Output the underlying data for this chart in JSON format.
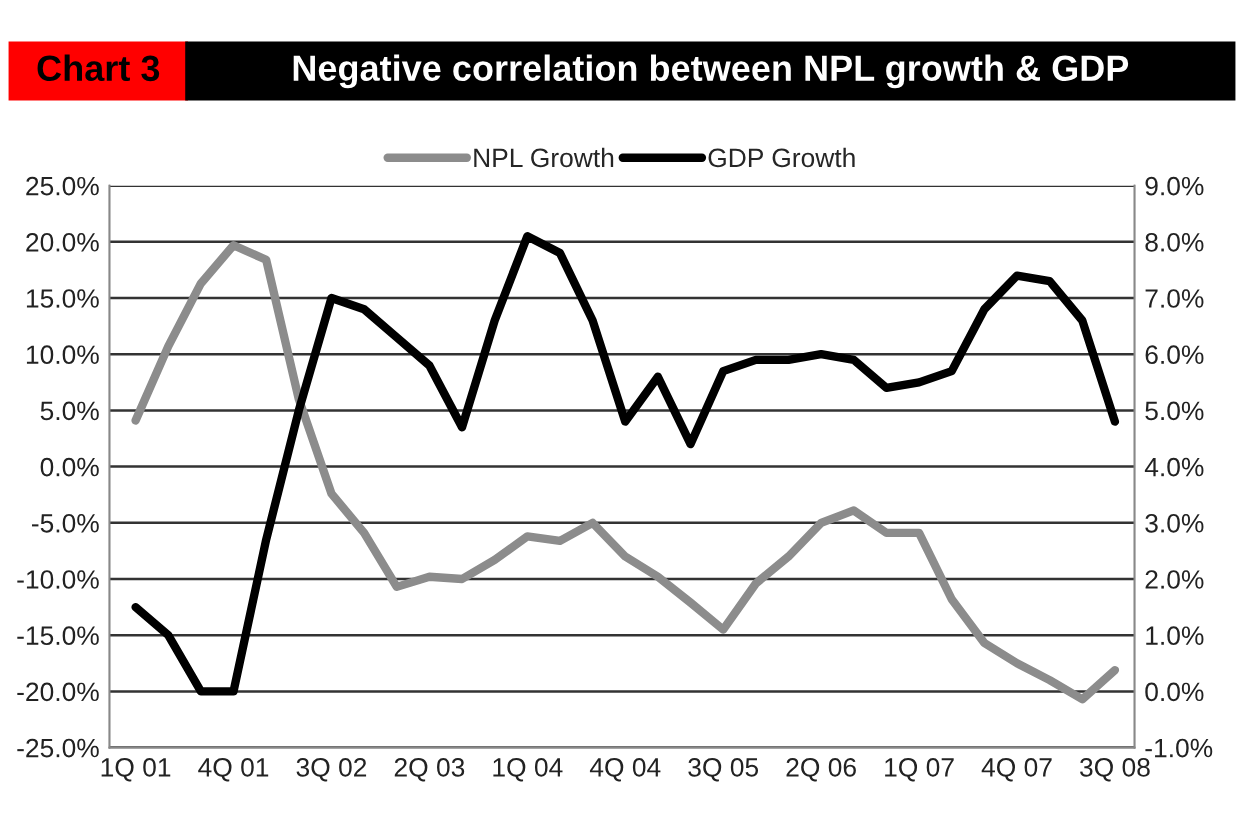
{
  "chart_data": {
    "type": "line",
    "title": "Negative correlation between NPL growth & GDP",
    "annotations": [
      "Chart 3"
    ],
    "categories": [
      "1Q 01",
      null,
      null,
      "4Q 01",
      null,
      null,
      "3Q 02",
      null,
      null,
      "2Q 03",
      null,
      null,
      "1Q 04",
      null,
      null,
      "4Q 04",
      null,
      null,
      "3Q 05",
      null,
      null,
      "2Q 06",
      null,
      null,
      "1Q 07",
      null,
      null,
      "4Q 07",
      null,
      null,
      "3Q 08"
    ],
    "series": [
      {
        "name": "NPL Growth",
        "color": "#8c8c8c",
        "values": [
          4.1,
          10.7,
          16.3,
          19.7,
          18.4,
          6.0,
          -2.4,
          -5.9,
          -10.7,
          -9.8,
          -10.0,
          -8.3,
          -6.2,
          -6.6,
          -5.0,
          -8.0,
          -9.8,
          -12.1,
          -14.5,
          -10.4,
          -8.0,
          -5.0,
          -3.9,
          -5.9,
          -5.9,
          -11.8,
          -15.7,
          -17.5,
          -19.0,
          -20.7,
          -18.1
        ]
      },
      {
        "name": "GDP Growth",
        "color": "#000000",
        "axis": "y2",
        "values": [
          1.5,
          1.0,
          0.0,
          0.0,
          2.7,
          5.0,
          7.0,
          6.8,
          6.3,
          5.8,
          4.7,
          6.6,
          8.1,
          7.8,
          6.6,
          4.8,
          5.6,
          4.4,
          5.7,
          5.9,
          5.9,
          6.0,
          5.9,
          5.4,
          5.5,
          5.7,
          6.8,
          7.4,
          7.3,
          6.6,
          4.8
        ]
      }
    ],
    "ylim": [
      -25,
      25
    ],
    "yticks": [
      {
        "value": -25,
        "label": "-25.0%"
      },
      {
        "value": -20,
        "label": "-20.0%"
      },
      {
        "value": -15,
        "label": "-15.0%"
      },
      {
        "value": -10,
        "label": "-10.0%"
      },
      {
        "value": -5,
        "label": "-5.0%"
      },
      {
        "value": 0,
        "label": "0.0%"
      },
      {
        "value": 5,
        "label": "5.0%"
      },
      {
        "value": 10,
        "label": "10.0%"
      },
      {
        "value": 15,
        "label": "15.0%"
      },
      {
        "value": 20,
        "label": "20.0%"
      },
      {
        "value": 25,
        "label": "25.0%"
      }
    ],
    "y2lim": [
      -1,
      9
    ],
    "y2ticks": [
      {
        "value": -1,
        "label": "-1.0%"
      },
      {
        "value": 0,
        "label": "0.0%"
      },
      {
        "value": 1,
        "label": "1.0%"
      },
      {
        "value": 2,
        "label": "2.0%"
      },
      {
        "value": 3,
        "label": "3.0%"
      },
      {
        "value": 4,
        "label": "4.0%"
      },
      {
        "value": 5,
        "label": "5.0%"
      },
      {
        "value": 6,
        "label": "6.0%"
      },
      {
        "value": 7,
        "label": "7.0%"
      },
      {
        "value": 8,
        "label": "8.0%"
      },
      {
        "value": 9,
        "label": "9.0%"
      }
    ],
    "grid": "y",
    "legend": "top",
    "marker": "none",
    "line_style": "solid"
  }
}
